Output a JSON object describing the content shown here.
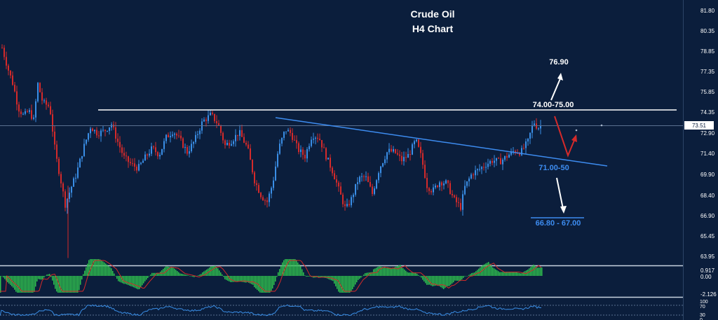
{
  "colors": {
    "background": "#0b1e3c",
    "bull": "#3a8ee6",
    "bear": "#d42a2a",
    "resistance": "#ffffff",
    "trendline": "#3d8cf0",
    "macd_hist": "#2fbf4e",
    "macd_signal": "#d42a2a",
    "rsi_line": "#3a8ee6",
    "axis_text": "#ffffff"
  },
  "chart_data": [
    {
      "type": "candlestick",
      "title": "Crude Oil",
      "subtitle": "H4 Chart",
      "ylim": [
        63.0,
        82.6
      ],
      "y_ticks": [
        "81.80",
        "80.35",
        "78.85",
        "77.35",
        "75.85",
        "74.35",
        "72.90",
        "71.40",
        "69.90",
        "68.40",
        "66.90",
        "65.45",
        "63.95"
      ],
      "last_price": "73.51",
      "grid": false,
      "levels": {
        "resistance": 74.5,
        "resistance_label": "74.00-75.00",
        "target_up": "76.90",
        "pivot_label": "71.00-50",
        "support_label": "66.80 - 67.00"
      }
    },
    {
      "type": "histogram",
      "indicator": "MACD",
      "y_ticks": [
        "0.917",
        "0.00",
        "-2.126"
      ]
    },
    {
      "type": "line",
      "indicator": "RSI",
      "y_ticks": [
        "100",
        "70",
        "30",
        "0"
      ]
    }
  ]
}
